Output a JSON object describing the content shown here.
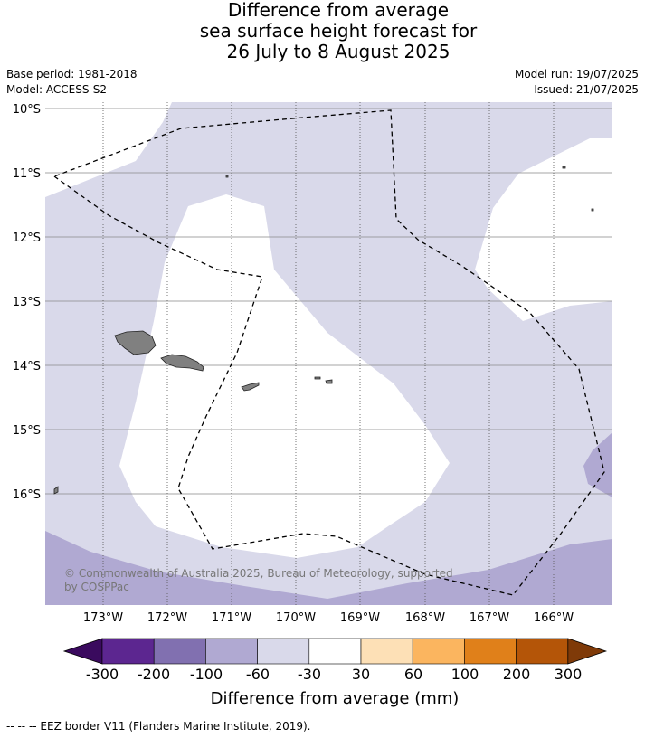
{
  "title": {
    "line1": "Difference from average",
    "line2": "sea surface height forecast for",
    "line3": "26 July to 8 August 2025"
  },
  "meta": {
    "base_period": "Base period: 1981-2018",
    "model": "Model: ACCESS-S2",
    "model_run": "Model run: 19/07/2025",
    "issued": "Issued: 21/07/2025"
  },
  "map": {
    "lat_labels": [
      "10°S",
      "11°S",
      "12°S",
      "13°S",
      "14°S",
      "15°S",
      "16°S"
    ],
    "lon_labels": [
      "173°W",
      "172°W",
      "171°W",
      "170°W",
      "169°W",
      "168°W",
      "167°W",
      "166°W"
    ],
    "copyright_line1": "© Commonwealth of Australia 2025, Bureau of Meteorology, supported",
    "copyright_line2": "by COSPPac",
    "colors": {
      "below_100": "#b0a9d2",
      "below_60": "#d9d9ea",
      "neutral": "#ffffff",
      "land": "#808080",
      "eez_border": "#000000"
    }
  },
  "colorbar": {
    "tick_labels": [
      "-300",
      "-200",
      "-100",
      "-60",
      "-30",
      "30",
      "60",
      "100",
      "200",
      "300"
    ],
    "colors": [
      "#3a0a5e",
      "#5c2690",
      "#8170b0",
      "#b0a9d2",
      "#d9d9ea",
      "#ffffff",
      "#fde0b6",
      "#fbb55f",
      "#e0801a",
      "#b45508",
      "#7f3a08"
    ],
    "label": "Difference from average (mm)"
  },
  "footnote": "--  --  -- EEZ border V11 (Flanders Marine Institute, 2019)."
}
